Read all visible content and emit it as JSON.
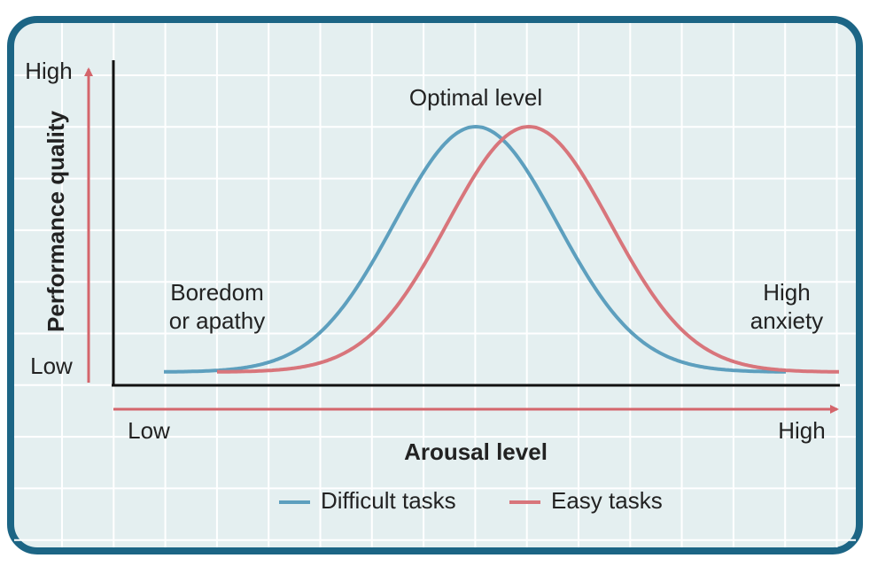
{
  "title": "Optimal level",
  "y_axis": {
    "label": "Performance quality",
    "high": "High",
    "low": "Low"
  },
  "x_axis": {
    "label": "Arousal level",
    "low": "Low",
    "high": "High"
  },
  "annotations": {
    "left": [
      "Boredom",
      "or apathy"
    ],
    "right": [
      "High",
      "anxiety"
    ]
  },
  "legend": [
    {
      "label": "Difficult tasks"
    },
    {
      "label": "Easy tasks"
    }
  ]
}
